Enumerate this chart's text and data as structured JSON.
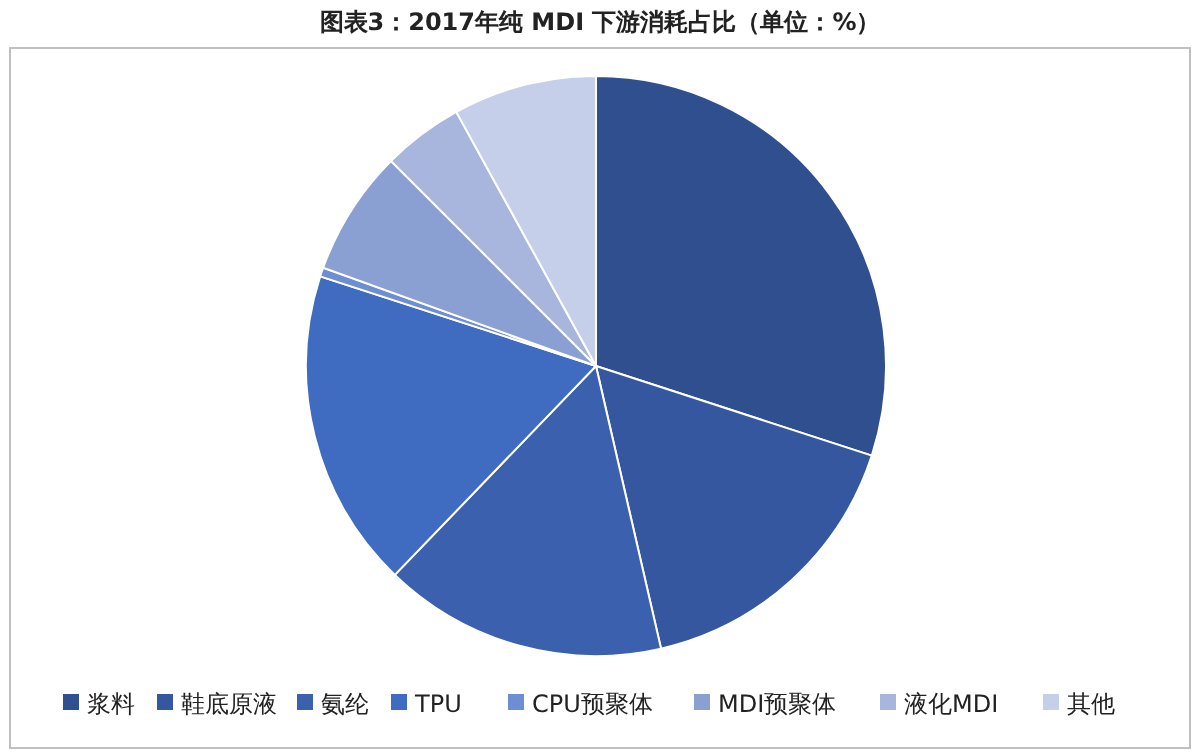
{
  "chart_data": {
    "type": "pie",
    "title": "图表3：2017年纯 MDI 下游消耗占比（单位：%）",
    "categories": [
      "浆料",
      "鞋底原液",
      "氨纶",
      "TPU",
      "CPU预聚体",
      "MDI预聚体",
      "液化MDI",
      "其他"
    ],
    "values": [
      30,
      16.4,
      15.8,
      17.8,
      0.5,
      7,
      4.5,
      8
    ],
    "colors": [
      "#2f4f8f",
      "#34579f",
      "#3a60ae",
      "#3f6bc0",
      "#6d8ed3",
      "#8aa0d2",
      "#a8b6de",
      "#c6cfea"
    ],
    "legend": "bottom"
  }
}
